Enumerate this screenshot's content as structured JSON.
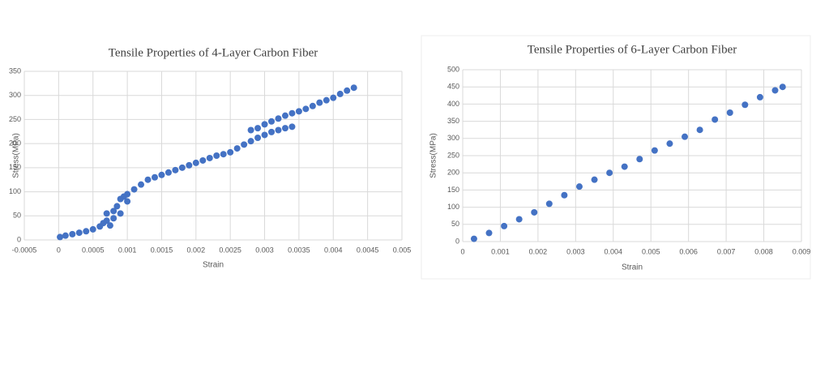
{
  "chart_data": [
    {
      "type": "scatter",
      "title": "Tensile Properties of 4-Layer Carbon Fiber",
      "x_label": "Strain",
      "y_label": "Stress(MPa)",
      "color": "#4472c4",
      "grid": true,
      "xlim": [
        -0.0005,
        0.005
      ],
      "xticks": [
        -0.0005,
        0,
        0.0005,
        0.001,
        0.0015,
        0.002,
        0.0025,
        0.003,
        0.0035,
        0.004,
        0.0045,
        0.005
      ],
      "ylim": [
        0,
        350
      ],
      "yticks": [
        0,
        50,
        100,
        150,
        200,
        250,
        300,
        350
      ],
      "x": [
        2e-05,
        0.0001,
        0.0002,
        0.0003,
        0.0004,
        0.0005,
        0.0006,
        0.00065,
        0.0007,
        0.0007,
        0.00075,
        0.0008,
        0.0008,
        0.00085,
        0.0009,
        0.0009,
        0.00095,
        0.001,
        0.001,
        0.0011,
        0.0012,
        0.0013,
        0.0014,
        0.0015,
        0.0016,
        0.0017,
        0.0018,
        0.0019,
        0.002,
        0.0021,
        0.0022,
        0.0023,
        0.0024,
        0.0025,
        0.0026,
        0.0027,
        0.0028,
        0.0029,
        0.003,
        0.0031,
        0.0032,
        0.0033,
        0.0034,
        0.0028,
        0.0029,
        0.003,
        0.0031,
        0.0032,
        0.0033,
        0.0034,
        0.0035,
        0.0036,
        0.0037,
        0.0038,
        0.0039,
        0.004,
        0.0041,
        0.0042,
        0.0043
      ],
      "values": [
        6,
        9,
        12,
        15,
        18,
        22,
        28,
        35,
        40,
        55,
        30,
        60,
        45,
        70,
        85,
        55,
        90,
        95,
        80,
        105,
        115,
        125,
        130,
        135,
        140,
        145,
        150,
        155,
        160,
        165,
        170,
        175,
        178,
        182,
        190,
        198,
        205,
        212,
        218,
        224,
        228,
        232,
        235,
        228,
        232,
        240,
        246,
        252,
        258,
        263,
        267,
        272,
        278,
        285,
        290,
        295,
        303,
        310,
        316
      ]
    },
    {
      "type": "scatter",
      "title": "Tensile Properties of 6-Layer Carbon Fiber",
      "x_label": "Strain",
      "y_label": "Stress(MPa)",
      "color": "#4472c4",
      "grid": true,
      "xlim": [
        0,
        0.009
      ],
      "xticks": [
        0,
        0.001,
        0.002,
        0.003,
        0.004,
        0.005,
        0.006,
        0.007,
        0.008,
        0.009
      ],
      "ylim": [
        0,
        500
      ],
      "yticks": [
        0,
        50,
        100,
        150,
        200,
        250,
        300,
        350,
        400,
        450,
        500
      ],
      "x": [
        0.0003,
        0.0007,
        0.0011,
        0.0015,
        0.0019,
        0.0023,
        0.0027,
        0.0031,
        0.0035,
        0.0039,
        0.0043,
        0.0047,
        0.0051,
        0.0055,
        0.0059,
        0.0063,
        0.0067,
        0.0071,
        0.0075,
        0.0079,
        0.0083,
        0.0085
      ],
      "values": [
        8,
        25,
        45,
        65,
        85,
        110,
        135,
        160,
        180,
        200,
        218,
        240,
        265,
        285,
        305,
        325,
        355,
        375,
        398,
        420,
        440,
        450
      ]
    }
  ]
}
